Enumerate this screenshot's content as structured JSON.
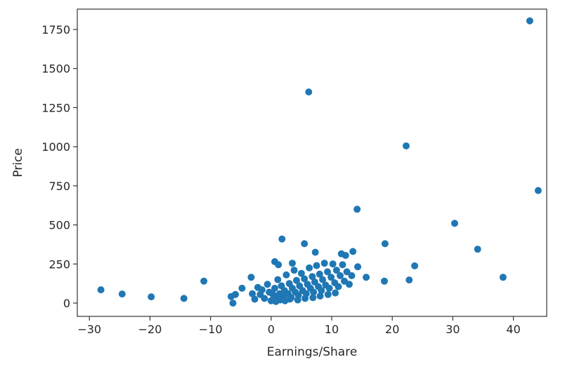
{
  "chart_data": {
    "type": "scatter",
    "title": "",
    "xlabel": "Earnings/Share",
    "ylabel": "Price",
    "xlim": [
      -32,
      45.5
    ],
    "ylim": [
      -85,
      1880
    ],
    "x_ticks": [
      -30,
      -20,
      -10,
      0,
      10,
      20,
      30,
      40
    ],
    "x_tick_labels": [
      "−30",
      "−20",
      "−10",
      "0",
      "10",
      "20",
      "30",
      "40"
    ],
    "y_ticks": [
      0,
      250,
      500,
      750,
      1000,
      1250,
      1500,
      1750
    ],
    "y_tick_labels": [
      "0",
      "250",
      "500",
      "750",
      "1000",
      "1250",
      "1500",
      "1750"
    ],
    "grid": false,
    "marker_color": "#1f77b4",
    "points": [
      [
        42.7,
        1805
      ],
      [
        6.2,
        1350
      ],
      [
        22.3,
        1005
      ],
      [
        44.1,
        720
      ],
      [
        14.2,
        600
      ],
      [
        30.3,
        510
      ],
      [
        34.1,
        345
      ],
      [
        18.8,
        380
      ],
      [
        38.3,
        165
      ],
      [
        23.7,
        238
      ],
      [
        22.8,
        148
      ],
      [
        18.7,
        140
      ],
      [
        15.7,
        165
      ],
      [
        14.3,
        232
      ],
      [
        13.5,
        330
      ],
      [
        11.6,
        315
      ],
      [
        12.3,
        305
      ],
      [
        5.5,
        380
      ],
      [
        7.3,
        325
      ],
      [
        1.8,
        410
      ],
      [
        0.6,
        265
      ],
      [
        1.2,
        245
      ],
      [
        -28.1,
        85
      ],
      [
        -24.6,
        58
      ],
      [
        -19.8,
        40
      ],
      [
        -14.4,
        30
      ],
      [
        -11.1,
        140
      ],
      [
        -6.6,
        42
      ],
      [
        -6.3,
        0
      ],
      [
        -5.9,
        55
      ],
      [
        -4.8,
        95
      ],
      [
        -3.3,
        165
      ],
      [
        -3.1,
        60
      ],
      [
        -2.7,
        25
      ],
      [
        -2.2,
        100
      ],
      [
        -1.8,
        55
      ],
      [
        -1.5,
        85
      ],
      [
        -1.1,
        30
      ],
      [
        -0.6,
        120
      ],
      [
        -0.3,
        70
      ],
      [
        0.0,
        15
      ],
      [
        0.3,
        55
      ],
      [
        0.6,
        95
      ],
      [
        0.9,
        30
      ],
      [
        1.1,
        150
      ],
      [
        1.4,
        60
      ],
      [
        1.7,
        110
      ],
      [
        2.0,
        40
      ],
      [
        2.2,
        80
      ],
      [
        2.5,
        180
      ],
      [
        2.8,
        60
      ],
      [
        3.0,
        125
      ],
      [
        3.3,
        35
      ],
      [
        3.5,
        95
      ],
      [
        3.8,
        210
      ],
      [
        4.0,
        70
      ],
      [
        4.2,
        145
      ],
      [
        4.5,
        50
      ],
      [
        4.7,
        110
      ],
      [
        5.0,
        190
      ],
      [
        5.2,
        80
      ],
      [
        5.5,
        155
      ],
      [
        5.8,
        60
      ],
      [
        6.0,
        120
      ],
      [
        6.3,
        225
      ],
      [
        6.5,
        95
      ],
      [
        6.8,
        170
      ],
      [
        7.0,
        70
      ],
      [
        7.2,
        135
      ],
      [
        7.5,
        240
      ],
      [
        7.8,
        105
      ],
      [
        8.0,
        185
      ],
      [
        8.3,
        80
      ],
      [
        8.5,
        150
      ],
      [
        8.8,
        255
      ],
      [
        9.0,
        115
      ],
      [
        9.3,
        200
      ],
      [
        9.6,
        95
      ],
      [
        9.9,
        165
      ],
      [
        10.2,
        250
      ],
      [
        10.5,
        130
      ],
      [
        10.8,
        210
      ],
      [
        11.1,
        105
      ],
      [
        11.4,
        175
      ],
      [
        11.8,
        245
      ],
      [
        12.1,
        140
      ],
      [
        12.5,
        200
      ],
      [
        12.9,
        120
      ],
      [
        13.3,
        175
      ],
      [
        3.5,
        255
      ],
      [
        1.5,
        20
      ],
      [
        2.3,
        15
      ],
      [
        3.1,
        25
      ],
      [
        4.4,
        20
      ],
      [
        5.6,
        30
      ],
      [
        6.9,
        35
      ],
      [
        8.1,
        45
      ],
      [
        9.4,
        55
      ],
      [
        10.6,
        65
      ],
      [
        0.8,
        10
      ]
    ]
  }
}
